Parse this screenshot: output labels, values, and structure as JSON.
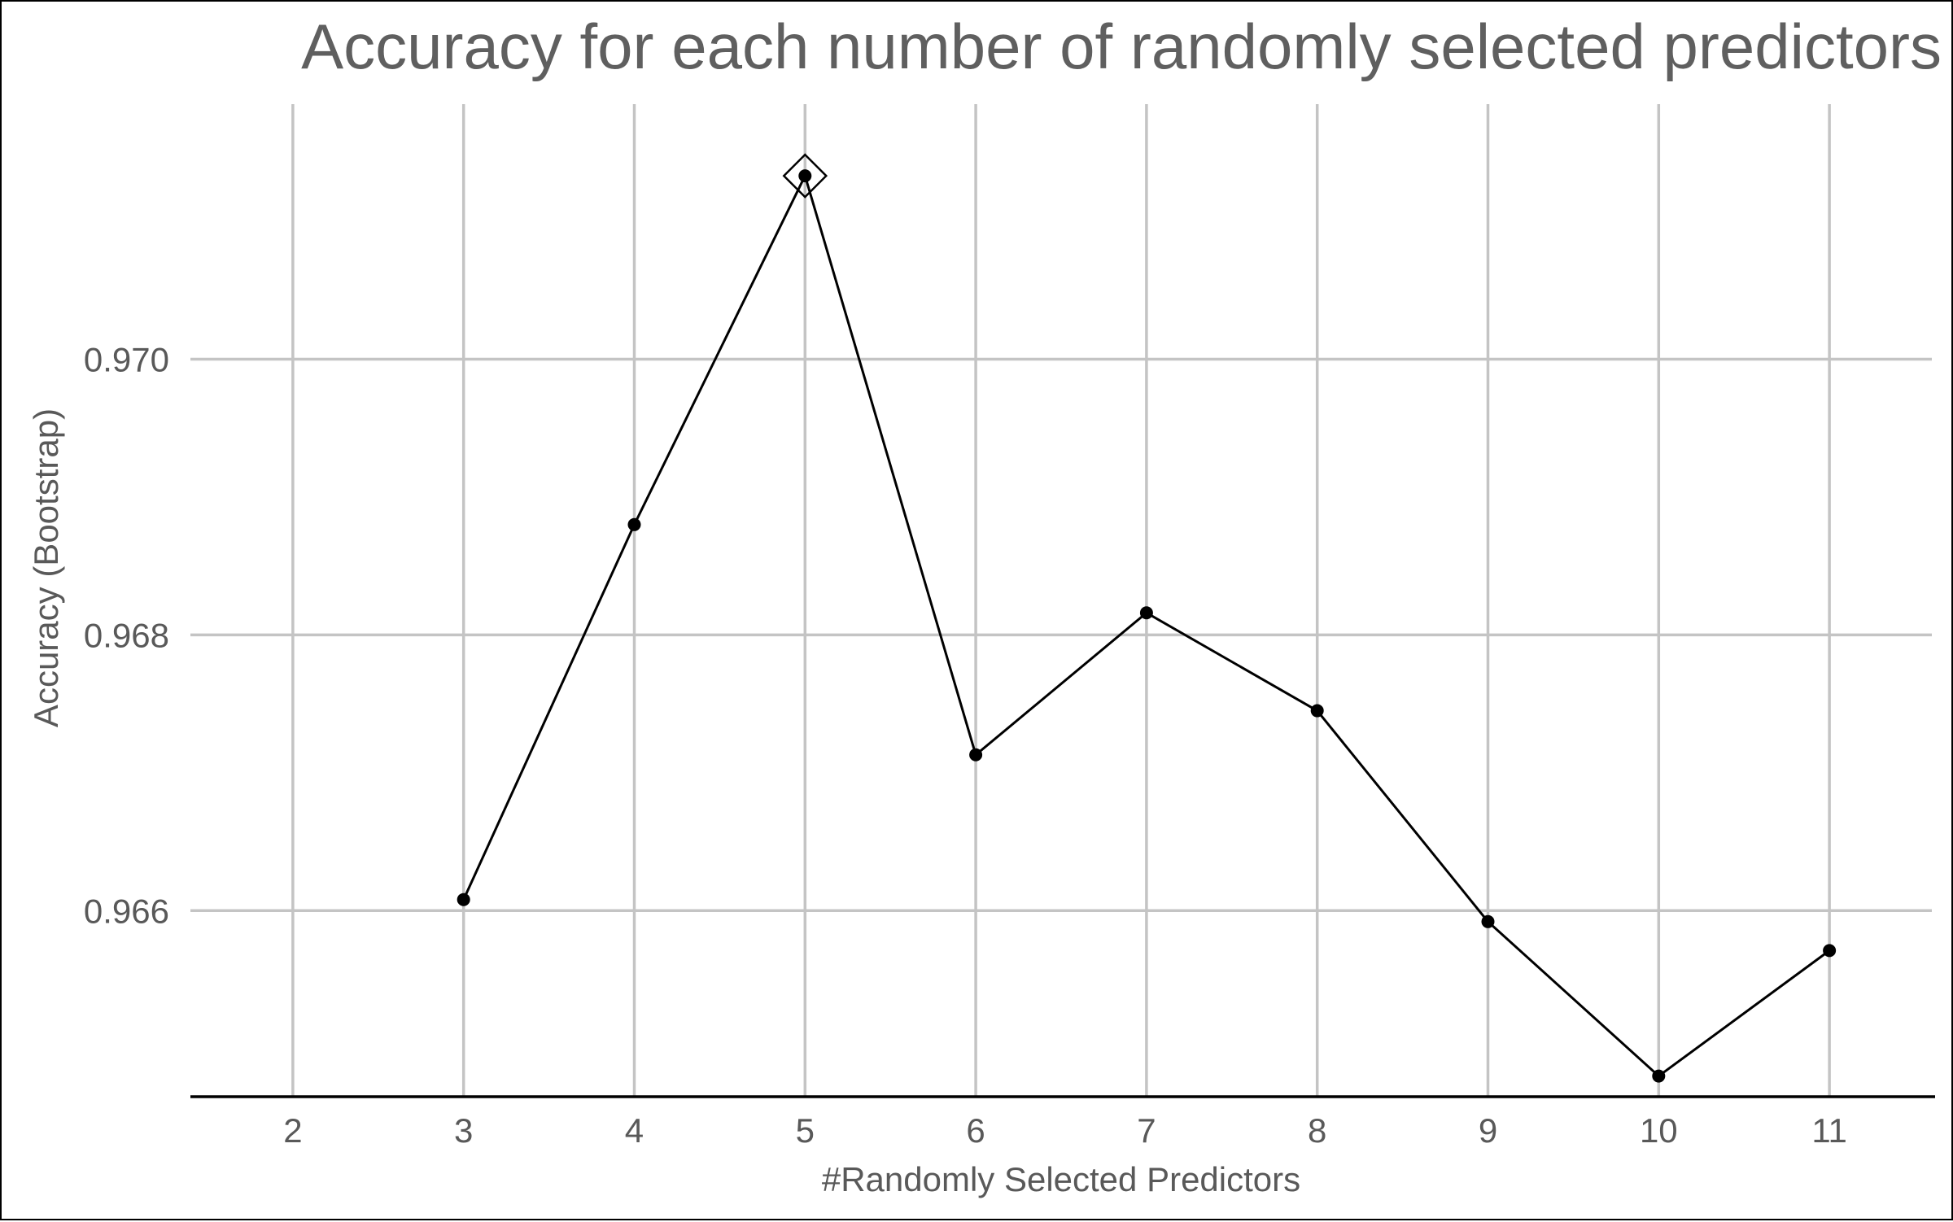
{
  "chart_data": {
    "type": "line",
    "title": "Accuracy for each number of randomly selected predictors",
    "xlabel": "#Randomly Selected Predictors",
    "ylabel": "Accuracy (Bootstrap)",
    "x_ticks": [
      2,
      3,
      4,
      5,
      6,
      7,
      8,
      9,
      10,
      11
    ],
    "y_ticks": [
      "0.966",
      "0.968",
      "0.970"
    ],
    "y_tick_values": [
      0.966,
      0.968,
      0.97
    ],
    "xlim": [
      1.4,
      11.6
    ],
    "ylim": [
      0.96465,
      0.97185
    ],
    "grid": true,
    "series": [
      {
        "x": [
          3,
          4,
          5,
          6,
          7,
          8,
          9,
          10,
          11
        ],
        "values": [
          0.96608,
          0.9688,
          0.97133,
          0.96713,
          0.96816,
          0.96745,
          0.96592,
          0.9648,
          0.96571
        ],
        "color": "#000000"
      }
    ],
    "best_point": {
      "x": 5,
      "y": 0.97133,
      "marker": "diamond"
    }
  }
}
